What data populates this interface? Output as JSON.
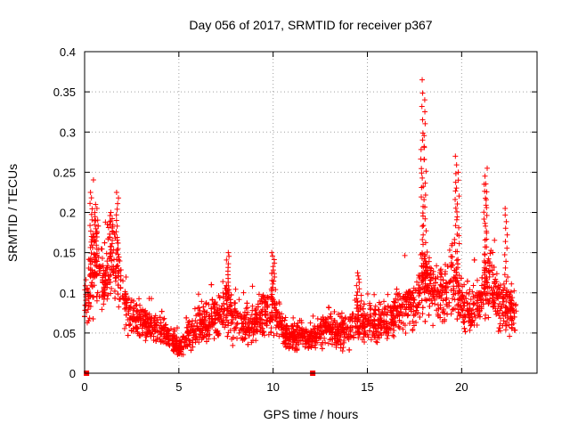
{
  "chart_data": {
    "type": "scatter",
    "title": "Day 056 of 2017, SRMTID for receiver p367",
    "xlabel": "GPS time / hours",
    "ylabel": "SRMTID / TECUs",
    "xlim": [
      0,
      24
    ],
    "ylim": [
      0,
      0.4
    ],
    "xticks": [
      0,
      5,
      10,
      15,
      20
    ],
    "xtick_labels": [
      "0",
      "5",
      "10",
      "15",
      "20"
    ],
    "yticks": [
      0,
      0.05,
      0.1,
      0.15,
      0.2,
      0.25,
      0.3,
      0.35,
      0.4
    ],
    "ytick_labels": [
      "0",
      "0.05",
      "0.1",
      "0.15",
      "0.2",
      "0.25",
      "0.3",
      "0.35",
      "0.4"
    ],
    "grid": true,
    "marker": "+",
    "color": "#ff0000",
    "zero_markers": [
      {
        "x": 0.1,
        "y": 0
      },
      {
        "x": 12.1,
        "y": 0
      }
    ],
    "envelope": [
      {
        "x": 0.0,
        "y": 0.08
      },
      {
        "x": 0.5,
        "y": 0.14
      },
      {
        "x": 1.0,
        "y": 0.11
      },
      {
        "x": 1.5,
        "y": 0.15
      },
      {
        "x": 2.0,
        "y": 0.09
      },
      {
        "x": 2.5,
        "y": 0.07
      },
      {
        "x": 3.0,
        "y": 0.065
      },
      {
        "x": 3.5,
        "y": 0.06
      },
      {
        "x": 4.0,
        "y": 0.055
      },
      {
        "x": 4.5,
        "y": 0.045
      },
      {
        "x": 5.0,
        "y": 0.03
      },
      {
        "x": 5.5,
        "y": 0.045
      },
      {
        "x": 6.0,
        "y": 0.055
      },
      {
        "x": 6.5,
        "y": 0.065
      },
      {
        "x": 7.0,
        "y": 0.07
      },
      {
        "x": 7.5,
        "y": 0.085
      },
      {
        "x": 8.0,
        "y": 0.065
      },
      {
        "x": 8.5,
        "y": 0.06
      },
      {
        "x": 9.0,
        "y": 0.065
      },
      {
        "x": 9.5,
        "y": 0.075
      },
      {
        "x": 10.0,
        "y": 0.085
      },
      {
        "x": 10.5,
        "y": 0.055
      },
      {
        "x": 11.0,
        "y": 0.045
      },
      {
        "x": 11.5,
        "y": 0.045
      },
      {
        "x": 12.0,
        "y": 0.045
      },
      {
        "x": 12.5,
        "y": 0.05
      },
      {
        "x": 13.0,
        "y": 0.055
      },
      {
        "x": 13.5,
        "y": 0.05
      },
      {
        "x": 14.0,
        "y": 0.055
      },
      {
        "x": 14.5,
        "y": 0.065
      },
      {
        "x": 15.0,
        "y": 0.06
      },
      {
        "x": 15.5,
        "y": 0.065
      },
      {
        "x": 16.0,
        "y": 0.065
      },
      {
        "x": 16.5,
        "y": 0.075
      },
      {
        "x": 17.0,
        "y": 0.08
      },
      {
        "x": 17.5,
        "y": 0.085
      },
      {
        "x": 18.0,
        "y": 0.12
      },
      {
        "x": 18.5,
        "y": 0.1
      },
      {
        "x": 19.0,
        "y": 0.095
      },
      {
        "x": 19.5,
        "y": 0.12
      },
      {
        "x": 20.0,
        "y": 0.09
      },
      {
        "x": 20.5,
        "y": 0.075
      },
      {
        "x": 21.0,
        "y": 0.09
      },
      {
        "x": 21.5,
        "y": 0.12
      },
      {
        "x": 22.0,
        "y": 0.085
      },
      {
        "x": 22.5,
        "y": 0.08
      },
      {
        "x": 22.9,
        "y": 0.07
      }
    ],
    "peaks": [
      {
        "x": 0.35,
        "y": 0.225
      },
      {
        "x": 0.6,
        "y": 0.21
      },
      {
        "x": 1.4,
        "y": 0.2
      },
      {
        "x": 1.75,
        "y": 0.225
      },
      {
        "x": 7.6,
        "y": 0.15
      },
      {
        "x": 10.0,
        "y": 0.15
      },
      {
        "x": 14.5,
        "y": 0.125
      },
      {
        "x": 17.95,
        "y": 0.365
      },
      {
        "x": 18.05,
        "y": 0.34
      },
      {
        "x": 17.9,
        "y": 0.29
      },
      {
        "x": 19.7,
        "y": 0.27
      },
      {
        "x": 19.8,
        "y": 0.25
      },
      {
        "x": 21.3,
        "y": 0.255
      },
      {
        "x": 21.25,
        "y": 0.235
      },
      {
        "x": 22.35,
        "y": 0.205
      }
    ],
    "point_count": 3000
  }
}
